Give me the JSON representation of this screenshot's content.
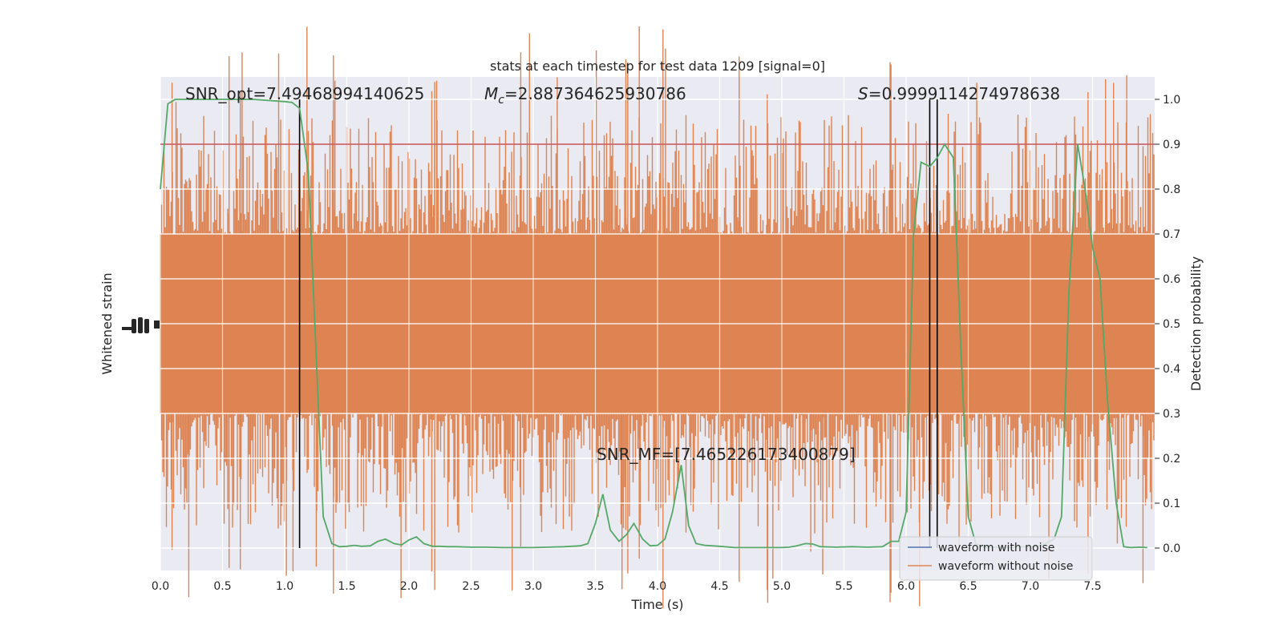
{
  "chart_data": {
    "type": "line",
    "title": "stats at each timestep for test data 1209 [signal=0]",
    "xlabel": "Time (s)",
    "ylabel_left": "Whitened strain",
    "ylabel_right": "Detection probability",
    "xlim": [
      0,
      8
    ],
    "ylim_right": [
      -0.05,
      1.05
    ],
    "x_ticks": [
      "0.0",
      "0.5",
      "1.0",
      "1.5",
      "2.0",
      "2.5",
      "3.0",
      "3.5",
      "4.0",
      "4.5",
      "5.0",
      "5.5",
      "6.0",
      "6.5",
      "7.0",
      "7.5"
    ],
    "right_ticks": [
      "0.0",
      "0.1",
      "0.2",
      "0.3",
      "0.4",
      "0.5",
      "0.6",
      "0.7",
      "0.8",
      "0.9",
      "1.0"
    ],
    "grid": true,
    "legend_position": "lower-right",
    "annotations": {
      "snr_opt": "SNR_opt=7.49468994140625",
      "mc_prefix": "M",
      "mc_sub": "c",
      "mc_value": "=2.887364625930786",
      "s_prefix": "S",
      "s_value": "=0.9999114274978638",
      "snr_mf": "SNR_MF=[7.465226173400879]"
    },
    "threshold": 0.9,
    "vertical_lines_time": [
      1.12,
      6.19,
      6.25
    ],
    "series": [
      {
        "name": "waveform with noise",
        "color": "#4c72b0"
      },
      {
        "name": "waveform without noise",
        "color": "#dd8452"
      }
    ],
    "probability_series": {
      "color": "#55a868",
      "x": [
        0.0,
        0.06,
        0.12,
        0.25,
        0.5,
        0.75,
        1.0,
        1.06,
        1.12,
        1.19,
        1.25,
        1.31,
        1.38,
        1.44,
        1.5,
        1.56,
        1.62,
        1.69,
        1.75,
        1.81,
        1.88,
        1.94,
        2.0,
        2.06,
        2.12,
        2.19,
        2.25,
        2.31,
        2.38,
        2.5,
        2.62,
        2.75,
        2.88,
        3.0,
        3.12,
        3.25,
        3.38,
        3.44,
        3.5,
        3.56,
        3.62,
        3.69,
        3.75,
        3.81,
        3.88,
        3.94,
        4.0,
        4.06,
        4.12,
        4.19,
        4.25,
        4.31,
        4.38,
        4.5,
        4.62,
        4.75,
        4.88,
        5.0,
        5.06,
        5.12,
        5.19,
        5.25,
        5.31,
        5.44,
        5.56,
        5.69,
        5.81,
        5.88,
        5.94,
        6.0,
        6.06,
        6.12,
        6.19,
        6.25,
        6.31,
        6.38,
        6.44,
        6.5,
        6.56,
        6.62,
        6.69,
        6.75,
        6.81,
        6.88,
        6.94,
        7.0,
        7.06,
        7.12,
        7.19,
        7.25,
        7.31,
        7.38,
        7.44,
        7.5,
        7.56,
        7.62,
        7.69,
        7.75,
        7.81,
        7.88,
        7.94
      ],
      "y": [
        0.8,
        0.99,
        1.0,
        1.0,
        1.0,
        1.0,
        0.995,
        0.993,
        0.98,
        0.84,
        0.45,
        0.07,
        0.01,
        0.003,
        0.004,
        0.006,
        0.004,
        0.005,
        0.015,
        0.02,
        0.01,
        0.007,
        0.018,
        0.025,
        0.01,
        0.004,
        0.004,
        0.003,
        0.003,
        0.002,
        0.002,
        0.001,
        0.001,
        0.001,
        0.002,
        0.003,
        0.005,
        0.01,
        0.055,
        0.12,
        0.04,
        0.015,
        0.03,
        0.055,
        0.02,
        0.005,
        0.006,
        0.02,
        0.08,
        0.185,
        0.05,
        0.01,
        0.006,
        0.004,
        0.001,
        0.001,
        0.001,
        0.001,
        0.002,
        0.005,
        0.01,
        0.009,
        0.003,
        0.002,
        0.003,
        0.002,
        0.003,
        0.015,
        0.015,
        0.08,
        0.7,
        0.86,
        0.85,
        0.87,
        0.9,
        0.87,
        0.45,
        0.07,
        0.01,
        0.002,
        0.002,
        0.001,
        0.001,
        0.002,
        0.003,
        0.003,
        0.004,
        0.01,
        0.02,
        0.07,
        0.57,
        0.9,
        0.8,
        0.67,
        0.6,
        0.33,
        0.1,
        0.003,
        0.001,
        0.002,
        0.001
      ]
    }
  }
}
